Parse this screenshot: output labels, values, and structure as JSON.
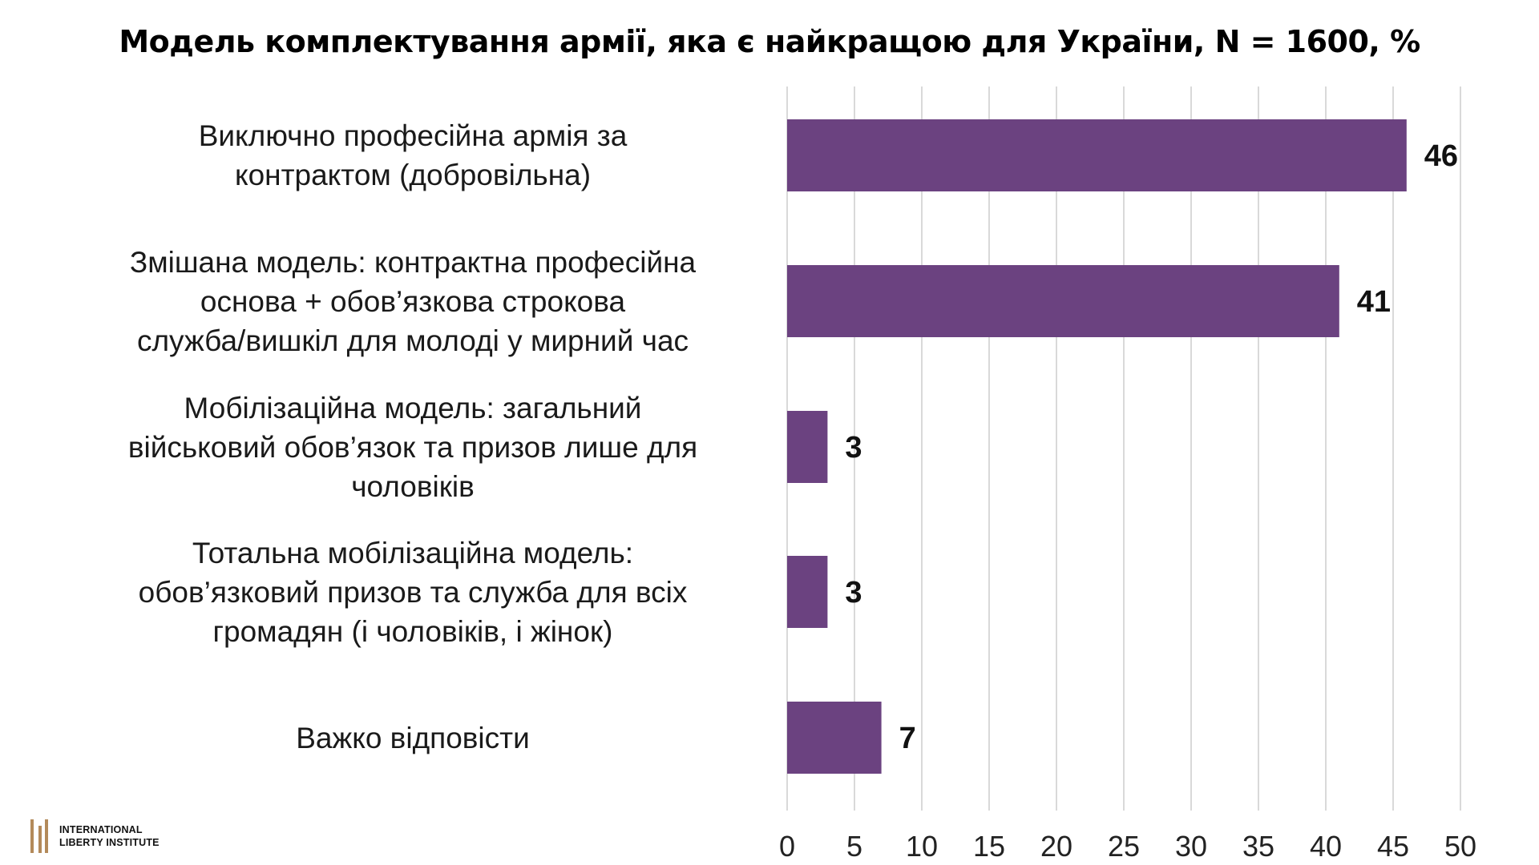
{
  "chart_data": {
    "type": "bar",
    "orientation": "horizontal",
    "title": "Модель комплектування армії, яка є найкращою для України, N = 1600, %",
    "categories": [
      [
        "Виключно професійна армія за",
        "контрактом (добровільна)"
      ],
      [
        "Змішана модель: контрактна професійна",
        "основа + обов’язкова строкова",
        "служба/вишкіл для молоді у мирний час"
      ],
      [
        "Мобілізаційна модель: загальний",
        "військовий обов’язок та призов лише для",
        "чоловіків"
      ],
      [
        "Тотальна мобілізаційна модель:",
        "обов’язковий призов та служба для всіх",
        "громадян (і чоловіків, і жінок)"
      ],
      [
        "Важко відповісти"
      ]
    ],
    "values": [
      46,
      41,
      3,
      3,
      7
    ],
    "data_labels": [
      "46",
      "41",
      "3",
      "3",
      "7"
    ],
    "xlim": [
      0,
      50
    ],
    "x_ticks": [
      "0",
      "5",
      "10",
      "15",
      "20",
      "25",
      "30",
      "35",
      "40",
      "45",
      "50"
    ],
    "grid": true,
    "bar_color": "#6b4280",
    "grid_color": "#d9d9d9"
  },
  "logo": {
    "line1": "International",
    "line2": "Liberty Institute",
    "color": "#b38a5a"
  }
}
